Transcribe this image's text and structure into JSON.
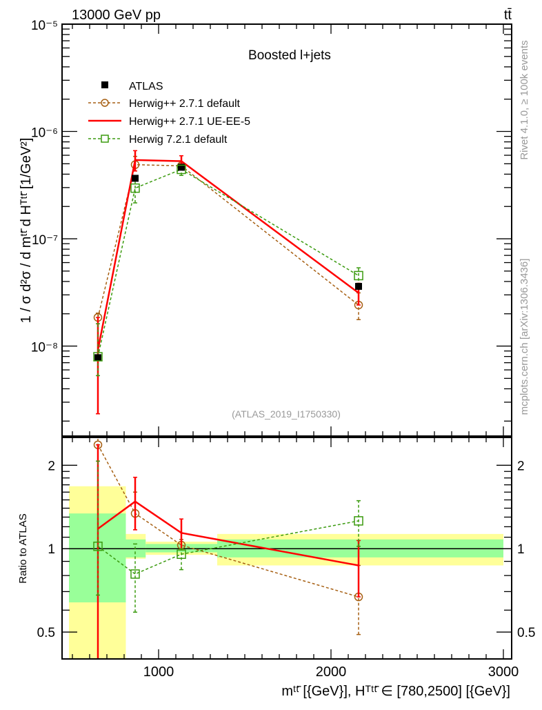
{
  "header": {
    "left": "13000 GeV pp",
    "right": "tt̄"
  },
  "side_labels": {
    "rivet": "Rivet 4.1.0, ≥ 100k events",
    "mcplots": "mcplots.cern.ch [arXiv:1306.3436]"
  },
  "chart_data": {
    "type": "line",
    "title": "Boosted l+jets",
    "analysis_id": "(ATLAS_2019_I1750330)",
    "xlabel": "mᵗᵗ̄ [{GeV}], Hᵀᵗᵗ̄ ∈ [780,2500] [{GeV}]",
    "ylabel": "1 / σ d²σ / d mᵗᵗ̄ d Hᵀᵗᵗ̄ [1/GeV²]",
    "ratio_ylabel": "Ratio to ATLAS",
    "xlim": [
      440,
      3048
    ],
    "ylim": [
      1.45e-09,
      1e-05
    ],
    "yscale": "log",
    "ratio_ylim": [
      0.4,
      2.52
    ],
    "ratio_yscale": "log",
    "xticks": [
      1000,
      2000,
      3000
    ],
    "xtick_labels": [
      "1000",
      "2000",
      "3000"
    ],
    "yticks": [
      1e-08,
      1e-07,
      1e-06,
      1e-05
    ],
    "ytick_labels": [
      "10⁻⁸",
      "10⁻⁷",
      "10⁻⁶",
      "10⁻⁵"
    ],
    "ratio_yticks": [
      0.5,
      1,
      2
    ],
    "ratio_ytick_labels": [
      "0.5",
      "1",
      "2"
    ],
    "bins": [
      [
        480,
        810
      ],
      [
        810,
        925
      ],
      [
        925,
        1340
      ],
      [
        1340,
        3000
      ]
    ],
    "x": [
      648,
      864,
      1132,
      2160
    ],
    "data": {
      "name": "ATLAS",
      "values": [
        7.8e-09,
        3.66e-07,
        4.64e-07,
        3.6e-08
      ],
      "band_inner": [
        [
          0.64,
          1.34
        ],
        [
          0.93,
          1.08
        ],
        [
          0.97,
          1.04
        ],
        [
          0.93,
          1.08
        ]
      ],
      "band_outer": [
        [
          0.3,
          1.68
        ],
        [
          0.92,
          1.13
        ],
        [
          0.95,
          1.06
        ],
        [
          0.87,
          1.13
        ]
      ]
    },
    "series": [
      {
        "name": "Herwig++ 2.7.1 default",
        "color": "#a65f12",
        "style": "dashed",
        "marker": "circle",
        "ratio": [
          2.37,
          1.34,
          1.03,
          0.67
        ],
        "ratio_err": [
          [
            0.3,
            2.6
          ],
          [
            1.17,
            1.6
          ],
          [
            0.99,
            1.08
          ],
          [
            0.49,
            0.87
          ]
        ]
      },
      {
        "name": "Herwig++ 2.7.1 UE-EE-5",
        "color": "#ff0000",
        "style": "solid",
        "marker": "none",
        "ratio": [
          1.18,
          1.48,
          1.14,
          0.87
        ],
        "ratio_err": [
          [
            0.3,
            2.37
          ],
          [
            1.17,
            1.81
          ],
          [
            1.0,
            1.28
          ],
          [
            0.67,
            1.07
          ]
        ]
      },
      {
        "name": "Herwig 7.2.1 default",
        "color": "#3a9a0e",
        "style": "dashed",
        "marker": "square",
        "ratio": [
          1.02,
          0.81,
          0.955,
          1.26
        ],
        "ratio_err": [
          [
            0.68,
            2.07
          ],
          [
            0.59,
            1.04
          ],
          [
            0.84,
            1.0
          ],
          [
            1.02,
            1.49
          ]
        ]
      }
    ],
    "band_colors": {
      "inner": "#99ff99",
      "outer": "#ffff99"
    },
    "legend_position": "top-left"
  }
}
